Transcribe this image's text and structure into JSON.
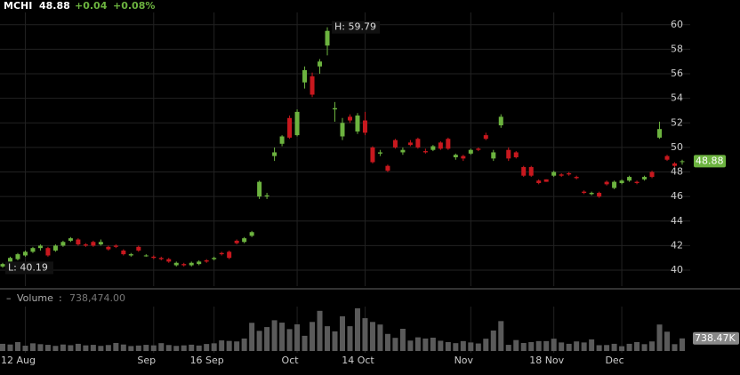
{
  "chart_data": {
    "type": "candlestick",
    "header": {
      "ticker": "MCHI",
      "last": "48.88",
      "change": "+0.04",
      "change_pct": "+0.08%"
    },
    "annotations": {
      "high": "H: 59.79",
      "low": "L: 40.19"
    },
    "volume_title": "Volume",
    "volume_sep": ":",
    "volume_readout": "738,474.00",
    "volume_axis_label": "738.47K",
    "categories": [
      null,
      null,
      null,
      "12 Aug",
      null,
      null,
      null,
      null,
      null,
      null,
      null,
      null,
      null,
      null,
      null,
      null,
      null,
      null,
      null,
      null,
      "Sep",
      null,
      null,
      null,
      null,
      null,
      null,
      null,
      "16 Sep",
      null,
      null,
      null,
      null,
      null,
      null,
      null,
      null,
      null,
      null,
      "Oct",
      null,
      null,
      null,
      null,
      null,
      null,
      null,
      null,
      "14 Oct",
      null,
      null,
      null,
      null,
      null,
      null,
      null,
      null,
      null,
      null,
      null,
      null,
      null,
      "Nov",
      null,
      null,
      null,
      null,
      null,
      null,
      null,
      null,
      null,
      null,
      "18 Nov",
      null,
      null,
      null,
      null,
      null,
      null,
      null,
      null,
      "Dec",
      null,
      null,
      null,
      null,
      null,
      null,
      null,
      null
    ],
    "open": [
      40.3,
      40.7,
      40.9,
      41.2,
      41.5,
      41.8,
      41.8,
      41.6,
      42.0,
      42.4,
      42.5,
      42.1,
      42.3,
      42.1,
      41.9,
      42.0,
      41.6,
      41.2,
      41.9,
      41.2,
      41.1,
      41.0,
      40.9,
      40.4,
      40.5,
      40.4,
      40.5,
      40.8,
      40.9,
      41.4,
      41.5,
      42.4,
      42.3,
      42.8,
      46.0,
      46.0,
      49.3,
      50.3,
      52.4,
      51.0,
      55.3,
      55.8,
      56.6,
      58.3,
      53.1,
      50.9,
      52.5,
      51.3,
      52.2,
      50.0,
      49.5,
      48.5,
      50.6,
      49.6,
      50.4,
      50.7,
      49.7,
      49.8,
      50.4,
      50.7,
      49.2,
      49.3,
      49.5,
      49.9,
      51.0,
      49.1,
      51.8,
      49.8,
      49.6,
      48.4,
      48.4,
      47.3,
      47.4,
      47.7,
      47.8,
      47.9,
      47.6,
      46.4,
      46.2,
      46.3,
      47.2,
      46.7,
      47.1,
      47.3,
      47.2,
      47.4,
      48.0,
      50.8,
      49.3,
      48.7,
      48.84
    ],
    "high": [
      40.6,
      41.1,
      41.4,
      41.6,
      41.9,
      42.1,
      41.9,
      42.1,
      42.4,
      42.7,
      42.6,
      42.2,
      42.4,
      42.5,
      42.0,
      42.1,
      41.7,
      41.4,
      42.0,
      41.3,
      41.2,
      41.1,
      41.0,
      40.7,
      40.6,
      40.7,
      40.8,
      40.9,
      41.1,
      41.5,
      41.6,
      42.5,
      42.7,
      43.2,
      47.3,
      46.3,
      50.0,
      51.0,
      52.6,
      53.1,
      56.6,
      56.1,
      57.2,
      59.79,
      53.7,
      52.4,
      52.7,
      52.8,
      52.9,
      50.1,
      49.8,
      48.6,
      50.7,
      50.0,
      50.6,
      50.8,
      49.9,
      50.2,
      50.5,
      50.8,
      49.5,
      49.4,
      49.9,
      50.0,
      51.2,
      49.8,
      52.7,
      50.0,
      49.7,
      48.5,
      48.5,
      47.4,
      47.4,
      48.1,
      47.9,
      48.0,
      47.7,
      46.5,
      46.4,
      46.4,
      47.3,
      47.3,
      47.4,
      47.7,
      47.3,
      47.7,
      48.1,
      52.1,
      49.4,
      48.8,
      49.0
    ],
    "low": [
      40.19,
      40.6,
      40.8,
      41.1,
      41.4,
      41.6,
      41.1,
      41.5,
      41.9,
      42.3,
      42.0,
      41.9,
      41.9,
      42.0,
      41.6,
      41.8,
      41.2,
      41.1,
      41.5,
      41.1,
      40.9,
      40.8,
      40.6,
      40.3,
      40.3,
      40.3,
      40.4,
      40.6,
      40.8,
      41.2,
      40.9,
      42.1,
      42.2,
      42.7,
      45.8,
      45.8,
      48.9,
      50.1,
      50.7,
      50.9,
      54.8,
      54.1,
      56.0,
      57.5,
      52.1,
      50.6,
      52.0,
      51.1,
      51.0,
      48.7,
      49.3,
      48.0,
      49.9,
      49.4,
      50.1,
      49.9,
      49.5,
      49.7,
      49.8,
      49.8,
      49.0,
      48.9,
      49.4,
      49.7,
      50.6,
      48.9,
      51.6,
      48.9,
      49.1,
      47.6,
      47.6,
      47.0,
      47.2,
      47.6,
      47.6,
      47.7,
      47.4,
      46.2,
      46.1,
      45.9,
      46.9,
      46.6,
      47.0,
      47.2,
      47.0,
      47.3,
      47.5,
      50.7,
      48.9,
      48.4,
      48.6
    ],
    "close": [
      40.5,
      41.0,
      41.3,
      41.5,
      41.8,
      42.0,
      41.2,
      42.0,
      42.3,
      42.6,
      42.1,
      42.0,
      42.0,
      42.3,
      41.7,
      41.9,
      41.3,
      41.3,
      41.6,
      41.2,
      41.0,
      40.9,
      40.7,
      40.6,
      40.4,
      40.6,
      40.7,
      40.7,
      41.0,
      41.3,
      41.0,
      42.2,
      42.6,
      43.1,
      47.2,
      46.1,
      49.6,
      50.9,
      50.8,
      52.9,
      56.3,
      54.3,
      57.0,
      59.5,
      53.2,
      52.0,
      52.2,
      52.6,
      51.2,
      48.8,
      49.6,
      48.1,
      50.0,
      49.8,
      50.2,
      50.0,
      49.6,
      50.1,
      49.9,
      49.9,
      49.4,
      49.1,
      49.8,
      49.8,
      50.7,
      49.6,
      52.5,
      49.1,
      49.2,
      47.7,
      47.7,
      47.1,
      47.2,
      48.0,
      47.7,
      47.8,
      47.5,
      46.3,
      46.3,
      46.0,
      47.0,
      47.2,
      47.3,
      47.6,
      47.1,
      47.6,
      47.6,
      51.5,
      49.0,
      48.5,
      48.88
    ],
    "volume": [
      420000,
      380000,
      520000,
      310000,
      450000,
      400000,
      360000,
      300000,
      380000,
      340000,
      420000,
      330000,
      360000,
      300000,
      350000,
      470000,
      380000,
      290000,
      320000,
      360000,
      330000,
      460000,
      350000,
      300000,
      330000,
      370000,
      320000,
      410000,
      450000,
      620000,
      590000,
      560000,
      730000,
      1650000,
      1180000,
      1400000,
      1800000,
      1660000,
      1280000,
      1560000,
      890000,
      1700000,
      2350000,
      1450000,
      1150000,
      2030000,
      1450000,
      2500000,
      1920000,
      1700000,
      1550000,
      1000000,
      770000,
      1300000,
      610000,
      800000,
      730000,
      780000,
      600000,
      520000,
      460000,
      580000,
      500000,
      440000,
      720000,
      1200000,
      1750000,
      360000,
      640000,
      470000,
      520000,
      580000,
      580000,
      720000,
      500000,
      420000,
      560000,
      500000,
      680000,
      340000,
      350000,
      420000,
      280000,
      420000,
      520000,
      400000,
      560000,
      1550000,
      1130000,
      400000,
      738474
    ],
    "ylim": [
      38.7,
      61
    ],
    "yticks": [
      40,
      42,
      44,
      46,
      48,
      50,
      52,
      54,
      56,
      58,
      60
    ],
    "volume_ylim": [
      0,
      2600000
    ],
    "up_color": "#6cb33f",
    "down_color": "#c8181e",
    "volume_color": "#5a5a5a",
    "grid": true
  }
}
